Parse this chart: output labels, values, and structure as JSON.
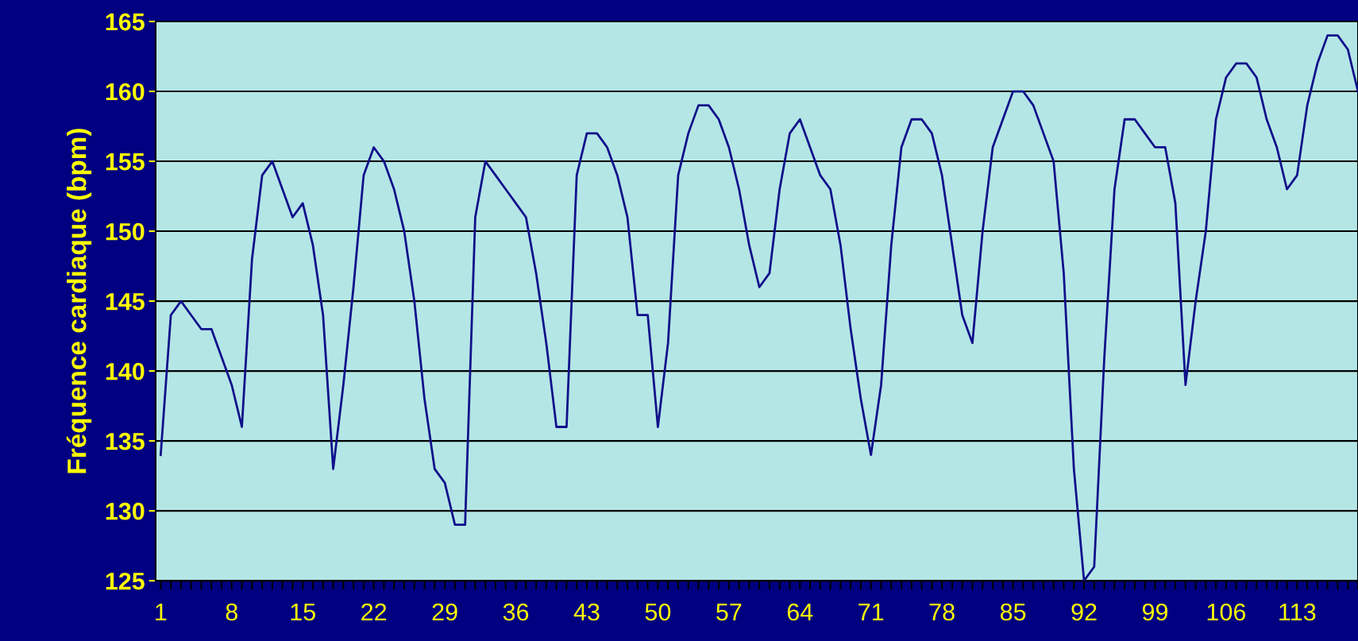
{
  "chart_data": {
    "type": "line",
    "ylabel": "Fréquence cardiaque (bpm)",
    "categories": [
      "1",
      null,
      null,
      null,
      null,
      null,
      null,
      "8",
      null,
      null,
      null,
      null,
      null,
      null,
      "15",
      null,
      null,
      null,
      null,
      null,
      null,
      "22",
      null,
      null,
      null,
      null,
      null,
      null,
      "29",
      null,
      null,
      null,
      null,
      null,
      null,
      "36",
      null,
      null,
      null,
      null,
      null,
      null,
      "43",
      null,
      null,
      null,
      null,
      null,
      null,
      "50",
      null,
      null,
      null,
      null,
      null,
      null,
      "57",
      null,
      null,
      null,
      null,
      null,
      null,
      "64",
      null,
      null,
      null,
      null,
      null,
      null,
      "71",
      null,
      null,
      null,
      null,
      null,
      null,
      "78",
      null,
      null,
      null,
      null,
      null,
      null,
      "85",
      null,
      null,
      null,
      null,
      null,
      null,
      "92",
      null,
      null,
      null,
      null,
      null,
      null,
      "99",
      null,
      null,
      null,
      null,
      null,
      null,
      "106",
      null,
      null,
      null,
      null,
      null,
      null,
      "113",
      null,
      null,
      null,
      null,
      null,
      null
    ],
    "series": [
      {
        "color": "#10108a",
        "values": [
          134,
          144,
          145,
          144,
          143,
          143,
          141,
          139,
          136,
          148,
          154,
          155,
          153,
          151,
          152,
          149,
          144,
          133,
          139,
          146,
          154,
          156,
          155,
          153,
          150,
          145,
          138,
          133,
          132,
          129,
          129,
          151,
          155,
          154,
          153,
          152,
          151,
          147,
          142,
          136,
          136,
          154,
          157,
          157,
          156,
          154,
          151,
          144,
          144,
          136,
          142,
          154,
          157,
          159,
          159,
          158,
          156,
          153,
          149,
          146,
          147,
          153,
          157,
          158,
          156,
          154,
          153,
          149,
          143,
          138,
          134,
          139,
          149,
          156,
          158,
          158,
          157,
          154,
          149,
          144,
          142,
          150,
          156,
          158,
          160,
          160,
          159,
          157,
          155,
          147,
          133,
          125,
          126,
          141,
          153,
          158,
          158,
          157,
          156,
          156,
          152,
          139,
          145,
          150,
          158,
          161,
          162,
          162,
          161,
          158,
          156,
          153,
          154,
          159,
          162,
          164,
          164,
          163,
          160
        ]
      }
    ],
    "ylim": [
      125,
      165
    ],
    "yticks": [
      125,
      130,
      135,
      140,
      145,
      150,
      155,
      160,
      165
    ],
    "grid": "y",
    "legend": false,
    "marker": "none",
    "line_style": "solid"
  }
}
